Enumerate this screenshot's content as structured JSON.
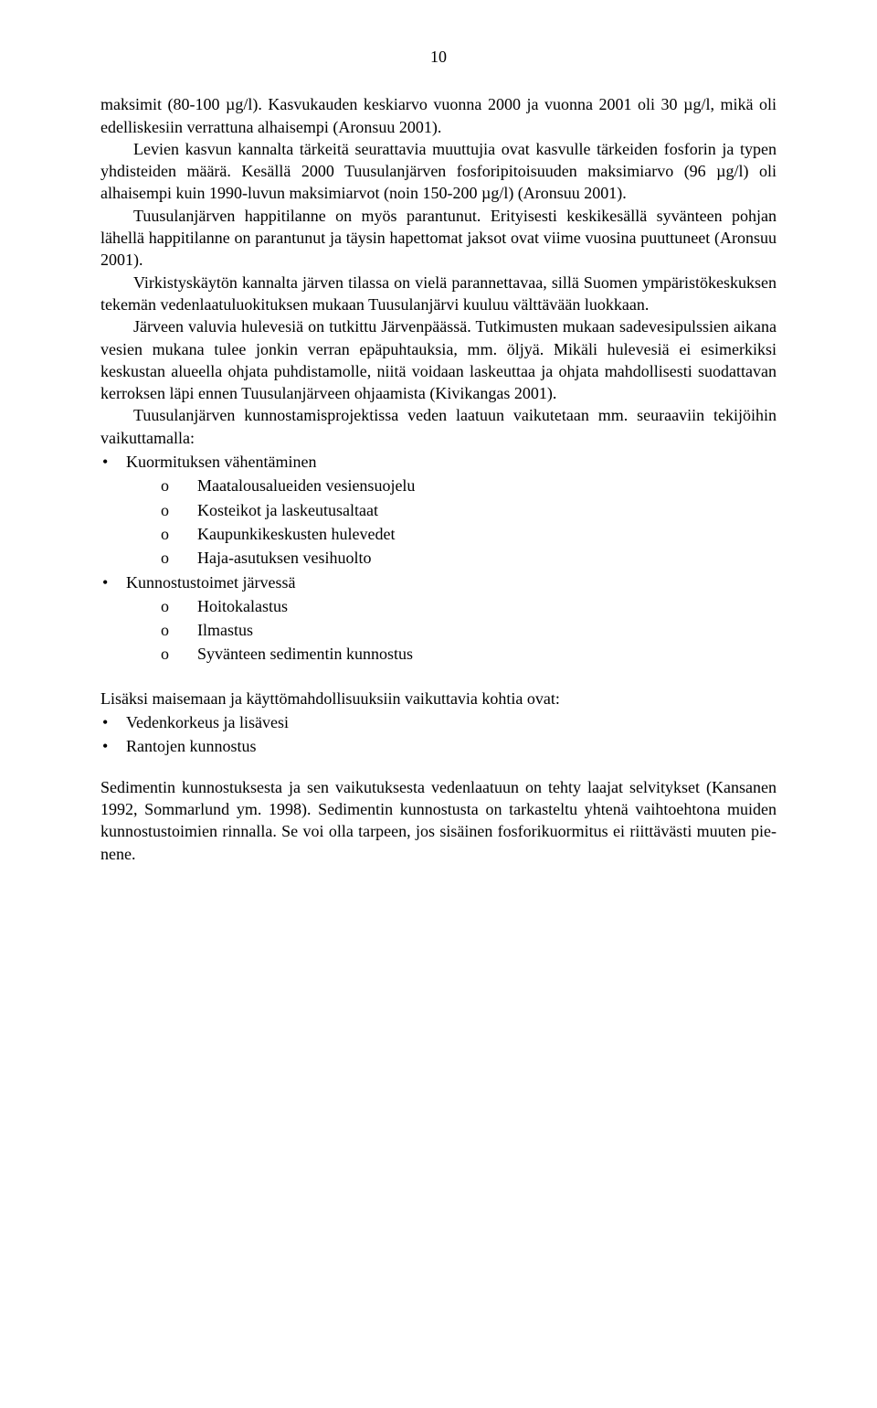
{
  "page": {
    "number": "10",
    "background_color": "#ffffff",
    "text_color": "#000000",
    "font_family": "Times New Roman",
    "body_fontsize_pt": 14
  },
  "paragraphs": {
    "p1": "maksimit (80-100 µg/l). Kasvukauden keskiarvo vuonna 2000 ja vuonna 2001 oli 30 µg/l, mikä oli edelliskesiin verrattuna alhaisempi (Aronsuu 2001).",
    "p2": "Levien kasvun kannalta tärkeitä seurattavia muuttujia ovat kasvulle tärkeiden fosforin ja typen yhdisteiden määrä. Kesällä 2000 Tuusulanjärven fosforipitoisuuden maksimiarvo (96 µg/l) oli alhaisempi kuin 1990-luvun maksimiarvot (noin 150-200 µg/l) (Aronsuu 2001).",
    "p3": "Tuusulanjärven happitilanne on myös parantunut. Erityisesti keski­kesällä syvänteen pohjan lähellä happitilanne on parantunut ja täysin hapet­tomat jaksot ovat viime vuosina puuttuneet (Aronsuu 2001).",
    "p4": "Virkistyskäytön kannalta järven tilassa on vielä parannettavaa, sillä Suomen ympäristökeskuksen tekemän vedenlaatuluokituksen mukaan Tuu­sulanjärvi kuuluu välttävään luokkaan.",
    "p5": "Järveen valuvia hulevesiä on tutkittu Järvenpäässä. Tutkimusten mu­kaan sadevesipulssien aikana vesien mukana tulee jonkin verran epäpuhta­uksia, mm. öljyä. Mikäli hulevesiä ei esimerkiksi keskustan alueella ohjata puhdistamolle, niitä voidaan laskeuttaa ja ohjata mahdollisesti suodattavan kerroksen läpi ennen Tuusulanjärveen ohjaamista (Kivikangas 2001).",
    "p6": "Tuusulanjärven kunnostamisprojektissa veden laatuun vaikutetaan mm. seuraaviin tekijöihin vaikuttamalla:",
    "p7": "Lisäksi maisemaan ja käyttömahdollisuuksiin vaikuttavia kohtia ovat:",
    "p8": "Sedimentin kunnostuksesta ja sen vaikutuksesta vedenlaatuun on tehty laajat selvitykset (Kansanen 1992, Sommarlund ym. 1998). Sedimentin kunnos­tusta on tarkasteltu yhtenä vaihtoehtona muiden kunnostustoimien rinnalla. Se voi olla tarpeen, jos sisäinen fosforikuormitus ei riittävästi muuten pie­nene."
  },
  "list1": {
    "items": [
      {
        "label": "Kuormituksen vähentäminen",
        "subitems": [
          "Maatalousalueiden vesiensuojelu",
          "Kosteikot ja laskeutusaltaat",
          "Kaupunkikeskusten hulevedet",
          "Haja-asutuksen vesihuolto"
        ]
      },
      {
        "label": "Kunnostustoimet järvessä",
        "subitems": [
          "Hoitokalastus",
          "Ilmastus",
          "Syvänteen sedimentin kunnostus"
        ]
      }
    ]
  },
  "list2": {
    "items": [
      {
        "label": "Vedenkorkeus ja lisävesi"
      },
      {
        "label": "Rantojen kunnostus"
      }
    ]
  },
  "sub_marker": "o"
}
